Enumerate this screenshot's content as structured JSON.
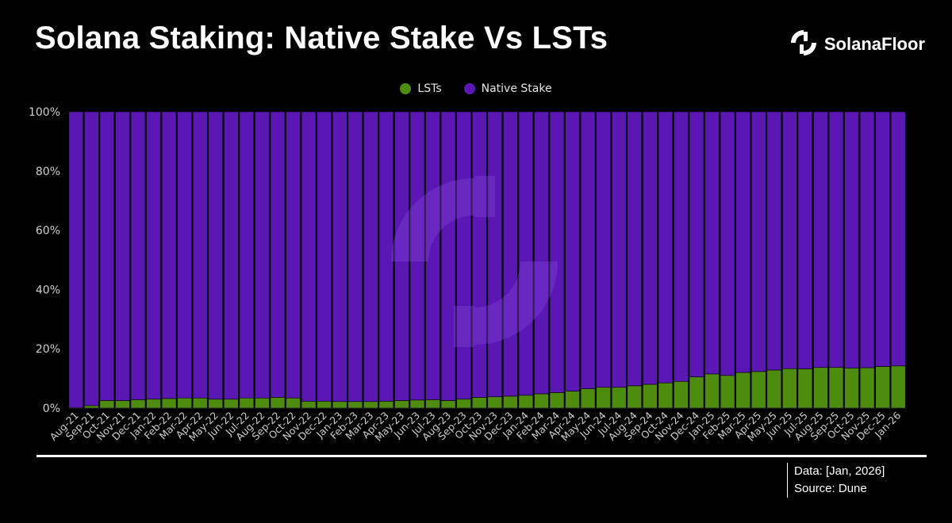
{
  "header": {
    "title": "Solana Staking: Native Stake Vs LSTs",
    "brand": "SolanaFloor",
    "brand_icon": "solanafloor-logo-icon"
  },
  "footer": {
    "data_note": "Data: [Jan, 2026]",
    "source_note": "Source: Dune"
  },
  "colors": {
    "background": "#000000",
    "lsts": "#4e8c0f",
    "native_stake": "#5b17b4",
    "bar_border": "#000000",
    "watermark": "#7a3fd0"
  },
  "chart_data": {
    "type": "bar",
    "stacked": true,
    "percent": true,
    "title": "Solana Staking: Native Stake Vs LSTs",
    "xlabel": "",
    "ylabel": "",
    "ylim": [
      0,
      100
    ],
    "yticks": [
      "0%",
      "20%",
      "40%",
      "60%",
      "80%",
      "100%"
    ],
    "legend_position": "top-center",
    "grid": false,
    "categories": [
      "Aug-21",
      "Sep-21",
      "Oct-21",
      "Nov-21",
      "Dec-21",
      "Jan-22",
      "Feb-22",
      "Mar-22",
      "Apr-22",
      "May-22",
      "Jun-22",
      "Jul-22",
      "Aug-22",
      "Sep-22",
      "Oct-22",
      "Nov-22",
      "Dec-22",
      "Jan-23",
      "Feb-23",
      "Mar-23",
      "Apr-23",
      "May-23",
      "Jun-23",
      "Jul-23",
      "Aug-23",
      "Sep-23",
      "Oct-23",
      "Nov-23",
      "Dec-23",
      "Jan-24",
      "Feb-24",
      "Mar-24",
      "Apr-24",
      "May-24",
      "Jun-24",
      "Jul-24",
      "Aug-24",
      "Sep-24",
      "Oct-24",
      "Nov-24",
      "Dec-24",
      "Jan-25",
      "Feb-25",
      "Mar-25",
      "Apr-25",
      "May-25",
      "Jun-25",
      "Jul-25",
      "Aug-25",
      "Sep-25",
      "Oct-25",
      "Nov-25",
      "Dec-25",
      "Jan-26"
    ],
    "series": [
      {
        "name": "LSTs",
        "color": "#4e8c0f",
        "values": [
          0.1,
          0.8,
          2.5,
          2.5,
          2.8,
          3.0,
          3.2,
          3.4,
          3.4,
          3.0,
          3.0,
          3.4,
          3.4,
          3.6,
          3.4,
          2.3,
          2.3,
          2.2,
          2.2,
          2.2,
          2.3,
          2.5,
          2.7,
          2.8,
          2.5,
          3.0,
          3.6,
          3.8,
          4.0,
          4.3,
          4.8,
          5.2,
          5.7,
          6.5,
          7.0,
          7.0,
          7.5,
          8.0,
          8.5,
          9.0,
          10.5,
          11.5,
          11.0,
          12.0,
          12.3,
          12.8,
          13.3,
          13.2,
          13.7,
          13.7,
          13.5,
          13.6,
          14.0,
          14.2
        ]
      },
      {
        "name": "Native Stake",
        "color": "#5b17b4",
        "values": [
          99.9,
          99.2,
          97.5,
          97.5,
          97.2,
          97.0,
          96.8,
          96.6,
          96.6,
          97.0,
          97.0,
          96.6,
          96.6,
          96.4,
          96.6,
          97.7,
          97.7,
          97.8,
          97.8,
          97.8,
          97.7,
          97.5,
          97.3,
          97.2,
          97.5,
          97.0,
          96.4,
          96.2,
          96.0,
          95.7,
          95.2,
          94.8,
          94.3,
          93.5,
          93.0,
          93.0,
          92.5,
          92.0,
          91.5,
          91.0,
          89.5,
          88.5,
          89.0,
          88.0,
          87.7,
          87.2,
          86.7,
          86.8,
          86.3,
          86.3,
          86.5,
          86.4,
          86.0,
          85.8
        ]
      }
    ]
  }
}
